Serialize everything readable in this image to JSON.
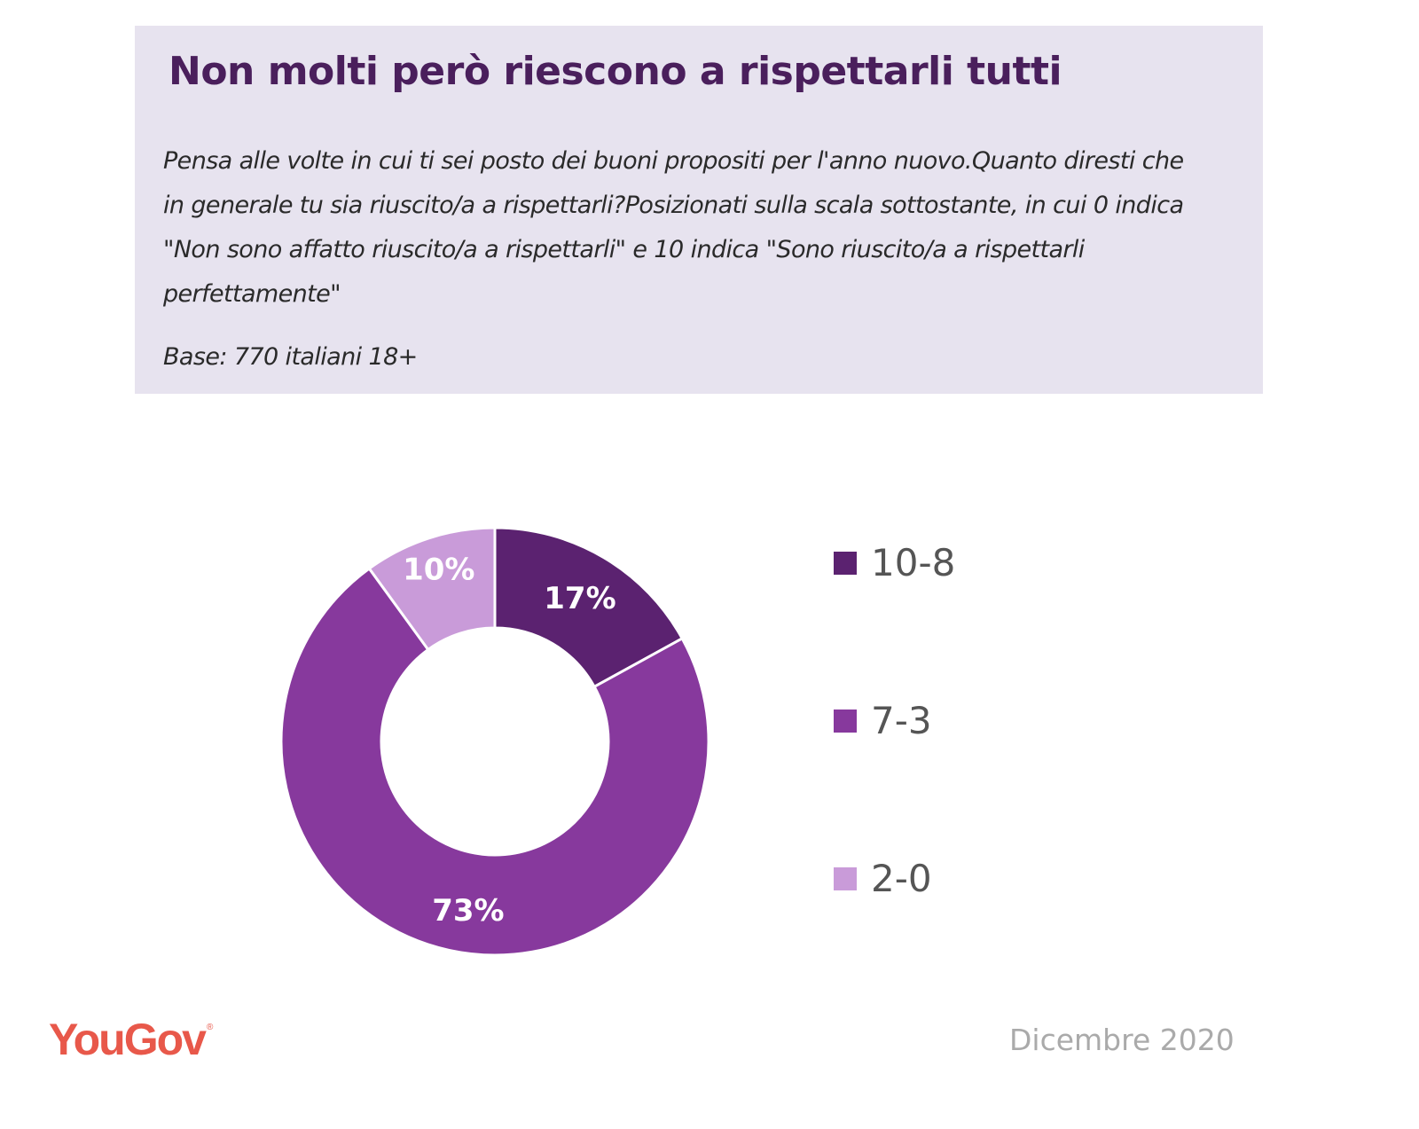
{
  "header": {
    "title": "Non molti però riescono a rispettarli tutti",
    "question": "Pensa alle volte in cui ti sei posto dei buoni propositi per l'anno nuovo.Quanto diresti che in generale tu sia riuscito/a a rispettarli?Posizionati sulla scala sottostante, in cui 0 indica \"Non sono affatto riuscito/a a rispettarli\" e 10 indica \"Sono riuscito/a a rispettarli perfettamente\"",
    "base": "Base: 770 italiani 18+"
  },
  "footer": {
    "logo": "YouGov",
    "logo_mark": "®",
    "date": "Dicembre 2020"
  },
  "colors": {
    "header_bg": "#e7e3ef",
    "title": "#4a1f5c",
    "logo": "#e8584a"
  },
  "chart_data": {
    "type": "pie",
    "subtype": "donut",
    "title": "Non molti però riescono a rispettarli tutti",
    "categories": [
      "10-8",
      "7-3",
      "2-0"
    ],
    "values": [
      17,
      73,
      10
    ],
    "labels": [
      "17%",
      "73%",
      "10%"
    ],
    "unit": "%",
    "colors": [
      "#5b2270",
      "#87399d",
      "#c99bd9"
    ],
    "legend": {
      "position": "right",
      "entries": [
        "10-8",
        "7-3",
        "2-0"
      ]
    },
    "start_angle": "top, clockwise"
  }
}
